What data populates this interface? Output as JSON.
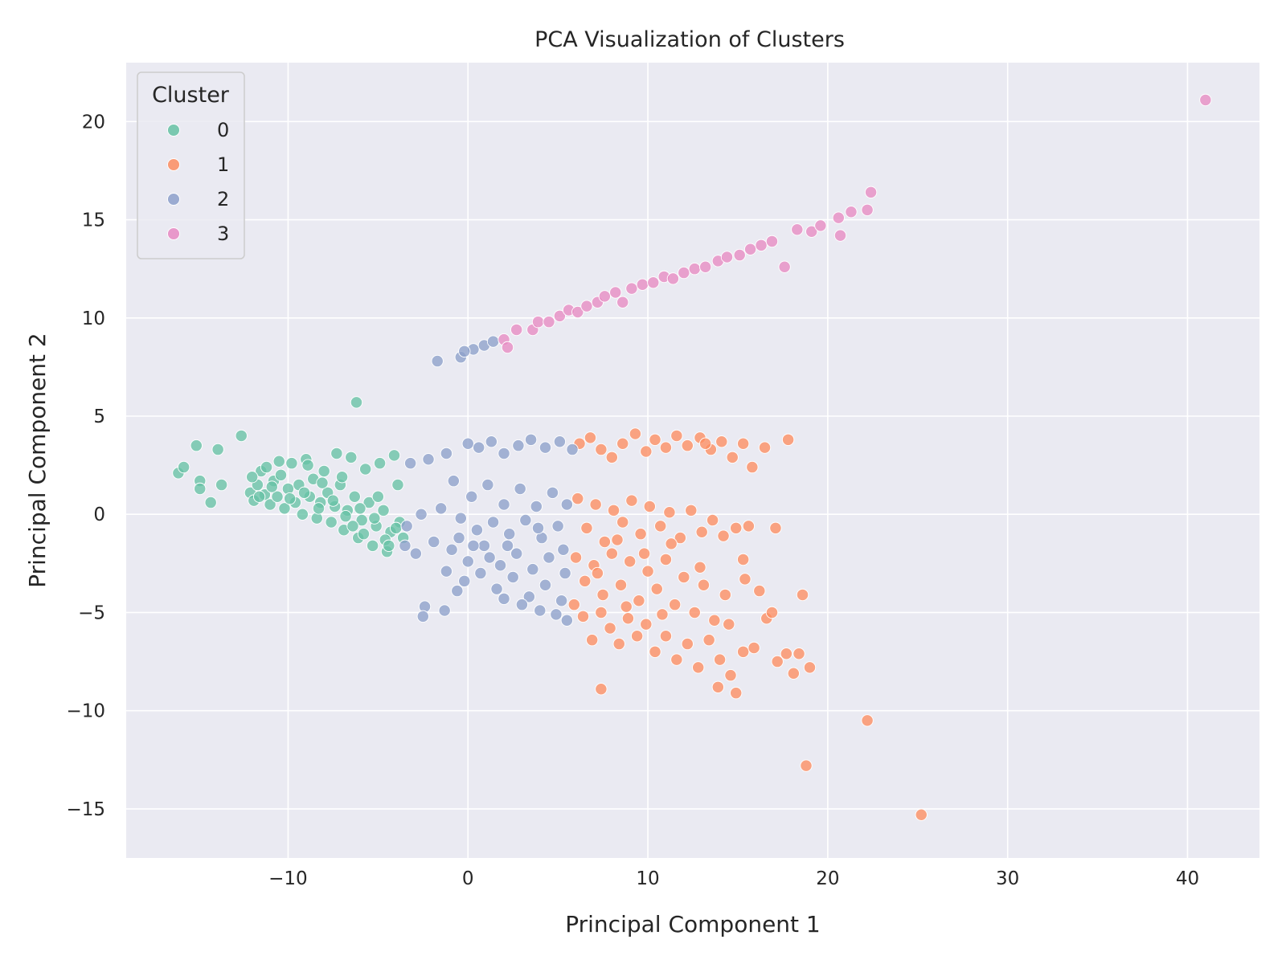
{
  "chart_data": {
    "type": "scatter",
    "title": "PCA Visualization of Clusters",
    "xlabel": "Principal Component 1",
    "ylabel": "Principal Component 2",
    "xlim": [
      -19,
      44
    ],
    "ylim": [
      -17.5,
      23
    ],
    "xticks": [
      -10,
      0,
      10,
      20,
      30,
      40
    ],
    "yticks": [
      -15,
      -10,
      -5,
      0,
      5,
      10,
      15,
      20
    ],
    "xtick_labels": [
      "−10",
      "0",
      "10",
      "20",
      "30",
      "40"
    ],
    "ytick_labels": [
      "−15",
      "−10",
      "−5",
      "0",
      "5",
      "10",
      "15",
      "20"
    ],
    "grid": true,
    "background": "#eaeaf2",
    "legend": {
      "title": "Cluster",
      "placement": "top-left"
    },
    "series": [
      {
        "name": "0",
        "color": "#66c2a5",
        "points": [
          [
            -16.1,
            2.1
          ],
          [
            -15.8,
            2.4
          ],
          [
            -15.1,
            3.5
          ],
          [
            -14.9,
            1.7
          ],
          [
            -14.9,
            1.3
          ],
          [
            -14.3,
            0.6
          ],
          [
            -13.9,
            3.3
          ],
          [
            -13.7,
            1.5
          ],
          [
            -12.6,
            4.0
          ],
          [
            -12.1,
            1.1
          ],
          [
            -11.9,
            0.7
          ],
          [
            -11.7,
            1.5
          ],
          [
            -11.5,
            2.2
          ],
          [
            -11.3,
            1.0
          ],
          [
            -11.0,
            0.5
          ],
          [
            -10.8,
            1.7
          ],
          [
            -10.6,
            0.9
          ],
          [
            -10.4,
            2.0
          ],
          [
            -10.2,
            0.3
          ],
          [
            -10.0,
            1.3
          ],
          [
            -9.8,
            2.6
          ],
          [
            -9.6,
            0.6
          ],
          [
            -9.4,
            1.5
          ],
          [
            -9.2,
            0.0
          ],
          [
            -9.0,
            2.8
          ],
          [
            -8.8,
            0.9
          ],
          [
            -8.6,
            1.8
          ],
          [
            -8.4,
            -0.2
          ],
          [
            -8.2,
            0.6
          ],
          [
            -8.0,
            2.2
          ],
          [
            -7.8,
            1.1
          ],
          [
            -7.6,
            -0.4
          ],
          [
            -7.4,
            0.4
          ],
          [
            -7.3,
            3.1
          ],
          [
            -7.1,
            1.5
          ],
          [
            -6.9,
            -0.8
          ],
          [
            -6.7,
            0.2
          ],
          [
            -6.5,
            2.9
          ],
          [
            -6.3,
            0.9
          ],
          [
            -6.2,
            5.7
          ],
          [
            -6.1,
            -1.2
          ],
          [
            -5.9,
            -0.3
          ],
          [
            -5.7,
            2.3
          ],
          [
            -5.5,
            0.6
          ],
          [
            -5.3,
            -1.6
          ],
          [
            -5.1,
            -0.6
          ],
          [
            -4.9,
            2.6
          ],
          [
            -4.7,
            0.2
          ],
          [
            -4.5,
            -1.9
          ],
          [
            -4.3,
            -0.9
          ],
          [
            -4.1,
            3.0
          ],
          [
            -3.9,
            1.5
          ],
          [
            -3.8,
            -0.4
          ],
          [
            -3.6,
            -1.2
          ],
          [
            -11.6,
            0.9
          ],
          [
            -10.9,
            1.4
          ],
          [
            -9.9,
            0.8
          ],
          [
            -9.1,
            1.1
          ],
          [
            -8.3,
            0.3
          ],
          [
            -7.5,
            0.7
          ],
          [
            -6.8,
            -0.1
          ],
          [
            -6.0,
            0.3
          ],
          [
            -5.2,
            -0.2
          ],
          [
            -4.6,
            -1.3
          ],
          [
            -4.0,
            -0.7
          ],
          [
            -12.0,
            1.9
          ],
          [
            -11.2,
            2.4
          ],
          [
            -10.5,
            2.7
          ],
          [
            -8.9,
            2.5
          ],
          [
            -8.1,
            1.6
          ],
          [
            -7.0,
            1.9
          ],
          [
            -6.4,
            -0.6
          ],
          [
            -5.8,
            -1.0
          ],
          [
            -5.0,
            0.9
          ],
          [
            -4.4,
            -1.6
          ]
        ]
      },
      {
        "name": "1",
        "color": "#fc8d62",
        "points": [
          [
            6.2,
            3.6
          ],
          [
            6.8,
            3.9
          ],
          [
            7.4,
            3.3
          ],
          [
            8.0,
            2.9
          ],
          [
            8.6,
            3.6
          ],
          [
            9.3,
            4.1
          ],
          [
            9.9,
            3.2
          ],
          [
            10.4,
            3.8
          ],
          [
            11.0,
            3.4
          ],
          [
            11.6,
            4.0
          ],
          [
            12.2,
            3.5
          ],
          [
            12.9,
            3.9
          ],
          [
            13.5,
            3.3
          ],
          [
            14.1,
            3.7
          ],
          [
            14.7,
            2.9
          ],
          [
            15.3,
            3.6
          ],
          [
            15.8,
            2.4
          ],
          [
            16.5,
            3.4
          ],
          [
            17.8,
            3.8
          ],
          [
            13.2,
            3.6
          ],
          [
            6.1,
            0.8
          ],
          [
            6.6,
            -0.7
          ],
          [
            7.1,
            0.5
          ],
          [
            7.6,
            -1.4
          ],
          [
            8.1,
            0.2
          ],
          [
            8.6,
            -0.4
          ],
          [
            9.1,
            0.7
          ],
          [
            9.6,
            -1.0
          ],
          [
            10.1,
            0.4
          ],
          [
            10.7,
            -0.6
          ],
          [
            11.2,
            0.1
          ],
          [
            11.8,
            -1.2
          ],
          [
            12.4,
            0.2
          ],
          [
            13.0,
            -0.9
          ],
          [
            13.6,
            -0.3
          ],
          [
            14.2,
            -1.1
          ],
          [
            14.9,
            -0.7
          ],
          [
            15.6,
            -0.6
          ],
          [
            17.1,
            -0.7
          ],
          [
            6.0,
            -2.2
          ],
          [
            6.5,
            -3.4
          ],
          [
            7.0,
            -2.6
          ],
          [
            7.5,
            -4.1
          ],
          [
            8.0,
            -2.0
          ],
          [
            8.5,
            -3.6
          ],
          [
            9.0,
            -2.4
          ],
          [
            9.5,
            -4.4
          ],
          [
            10.0,
            -2.9
          ],
          [
            10.5,
            -3.8
          ],
          [
            11.0,
            -2.3
          ],
          [
            11.5,
            -4.6
          ],
          [
            12.0,
            -3.2
          ],
          [
            12.6,
            -5.0
          ],
          [
            13.1,
            -3.6
          ],
          [
            13.7,
            -5.4
          ],
          [
            14.3,
            -4.1
          ],
          [
            5.9,
            -4.6
          ],
          [
            6.4,
            -5.2
          ],
          [
            6.9,
            -6.4
          ],
          [
            7.4,
            -5.0
          ],
          [
            7.9,
            -5.8
          ],
          [
            8.4,
            -6.6
          ],
          [
            8.9,
            -5.3
          ],
          [
            9.4,
            -6.2
          ],
          [
            9.9,
            -5.6
          ],
          [
            10.4,
            -7.0
          ],
          [
            11.0,
            -6.2
          ],
          [
            11.6,
            -7.4
          ],
          [
            12.2,
            -6.6
          ],
          [
            12.8,
            -7.8
          ],
          [
            13.4,
            -6.4
          ],
          [
            14.0,
            -7.4
          ],
          [
            14.6,
            -8.2
          ],
          [
            15.3,
            -7.0
          ],
          [
            15.9,
            -6.8
          ],
          [
            16.6,
            -5.3
          ],
          [
            17.2,
            -7.5
          ],
          [
            17.7,
            -7.1
          ],
          [
            18.1,
            -8.1
          ],
          [
            18.4,
            -7.1
          ],
          [
            19.0,
            -7.8
          ],
          [
            18.6,
            -4.1
          ],
          [
            16.9,
            -5.0
          ],
          [
            16.2,
            -3.9
          ],
          [
            15.3,
            -2.3
          ],
          [
            15.4,
            -3.3
          ],
          [
            13.9,
            -8.8
          ],
          [
            14.9,
            -9.1
          ],
          [
            7.4,
            -8.9
          ],
          [
            22.2,
            -10.5
          ],
          [
            18.8,
            -12.8
          ],
          [
            25.2,
            -15.3
          ],
          [
            8.3,
            -1.3
          ],
          [
            9.8,
            -2.0
          ],
          [
            11.3,
            -1.5
          ],
          [
            12.9,
            -2.7
          ],
          [
            14.5,
            -5.6
          ],
          [
            10.8,
            -5.1
          ],
          [
            7.2,
            -3.0
          ],
          [
            8.8,
            -4.7
          ]
        ]
      },
      {
        "name": "2",
        "color": "#8da0cb",
        "points": [
          [
            -1.7,
            7.8
          ],
          [
            -0.4,
            8.0
          ],
          [
            0.3,
            8.4
          ],
          [
            0.9,
            8.6
          ],
          [
            1.4,
            8.8
          ],
          [
            -0.2,
            8.3
          ],
          [
            0.0,
            3.6
          ],
          [
            0.6,
            3.4
          ],
          [
            1.3,
            3.7
          ],
          [
            2.0,
            3.1
          ],
          [
            2.8,
            3.5
          ],
          [
            3.5,
            3.8
          ],
          [
            4.3,
            3.4
          ],
          [
            5.1,
            3.7
          ],
          [
            5.8,
            3.3
          ],
          [
            -1.2,
            3.1
          ],
          [
            -2.2,
            2.8
          ],
          [
            -3.2,
            2.6
          ],
          [
            -0.8,
            1.7
          ],
          [
            0.2,
            0.9
          ],
          [
            1.1,
            1.5
          ],
          [
            2.0,
            0.5
          ],
          [
            2.9,
            1.3
          ],
          [
            3.8,
            0.4
          ],
          [
            4.7,
            1.1
          ],
          [
            5.5,
            0.5
          ],
          [
            -1.5,
            0.3
          ],
          [
            -2.6,
            0.0
          ],
          [
            -3.4,
            -0.6
          ],
          [
            -0.4,
            -0.2
          ],
          [
            0.5,
            -0.8
          ],
          [
            1.4,
            -0.4
          ],
          [
            2.3,
            -1.0
          ],
          [
            3.2,
            -0.3
          ],
          [
            4.1,
            -1.2
          ],
          [
            5.0,
            -0.6
          ],
          [
            -1.9,
            -1.4
          ],
          [
            -2.9,
            -2.0
          ],
          [
            -3.5,
            -1.6
          ],
          [
            -0.9,
            -1.8
          ],
          [
            0.0,
            -2.4
          ],
          [
            0.9,
            -1.6
          ],
          [
            1.8,
            -2.6
          ],
          [
            2.7,
            -2.0
          ],
          [
            3.6,
            -2.8
          ],
          [
            4.5,
            -2.2
          ],
          [
            5.4,
            -3.0
          ],
          [
            -1.2,
            -2.9
          ],
          [
            -0.2,
            -3.4
          ],
          [
            0.7,
            -3.0
          ],
          [
            1.6,
            -3.8
          ],
          [
            2.5,
            -3.2
          ],
          [
            3.4,
            -4.2
          ],
          [
            4.3,
            -3.6
          ],
          [
            5.2,
            -4.4
          ],
          [
            3.0,
            -4.6
          ],
          [
            4.0,
            -4.9
          ],
          [
            4.9,
            -5.1
          ],
          [
            5.5,
            -5.4
          ],
          [
            -2.4,
            -4.7
          ],
          [
            -2.5,
            -5.2
          ],
          [
            -1.3,
            -4.9
          ],
          [
            -0.6,
            -3.9
          ],
          [
            2.0,
            -4.3
          ],
          [
            1.2,
            -2.2
          ],
          [
            -0.5,
            -1.2
          ],
          [
            0.3,
            -1.6
          ],
          [
            2.2,
            -1.6
          ],
          [
            3.9,
            -0.7
          ],
          [
            5.3,
            -1.8
          ]
        ]
      },
      {
        "name": "3",
        "color": "#e78ac3",
        "points": [
          [
            2.0,
            8.9
          ],
          [
            2.2,
            8.5
          ],
          [
            2.7,
            9.4
          ],
          [
            3.6,
            9.4
          ],
          [
            3.9,
            9.8
          ],
          [
            4.5,
            9.8
          ],
          [
            5.1,
            10.1
          ],
          [
            5.6,
            10.4
          ],
          [
            6.1,
            10.3
          ],
          [
            6.6,
            10.6
          ],
          [
            7.2,
            10.8
          ],
          [
            7.6,
            11.1
          ],
          [
            8.2,
            11.3
          ],
          [
            8.6,
            10.8
          ],
          [
            9.1,
            11.5
          ],
          [
            9.7,
            11.7
          ],
          [
            10.3,
            11.8
          ],
          [
            10.9,
            12.1
          ],
          [
            11.4,
            12.0
          ],
          [
            12.0,
            12.3
          ],
          [
            12.6,
            12.5
          ],
          [
            13.2,
            12.6
          ],
          [
            13.9,
            12.9
          ],
          [
            14.4,
            13.1
          ],
          [
            15.1,
            13.2
          ],
          [
            15.7,
            13.5
          ],
          [
            16.3,
            13.7
          ],
          [
            16.9,
            13.9
          ],
          [
            17.6,
            12.6
          ],
          [
            18.3,
            14.5
          ],
          [
            19.1,
            14.4
          ],
          [
            19.6,
            14.7
          ],
          [
            20.6,
            15.1
          ],
          [
            20.7,
            14.2
          ],
          [
            21.3,
            15.4
          ],
          [
            22.2,
            15.5
          ],
          [
            22.4,
            16.4
          ],
          [
            41.0,
            21.1
          ]
        ]
      }
    ]
  }
}
